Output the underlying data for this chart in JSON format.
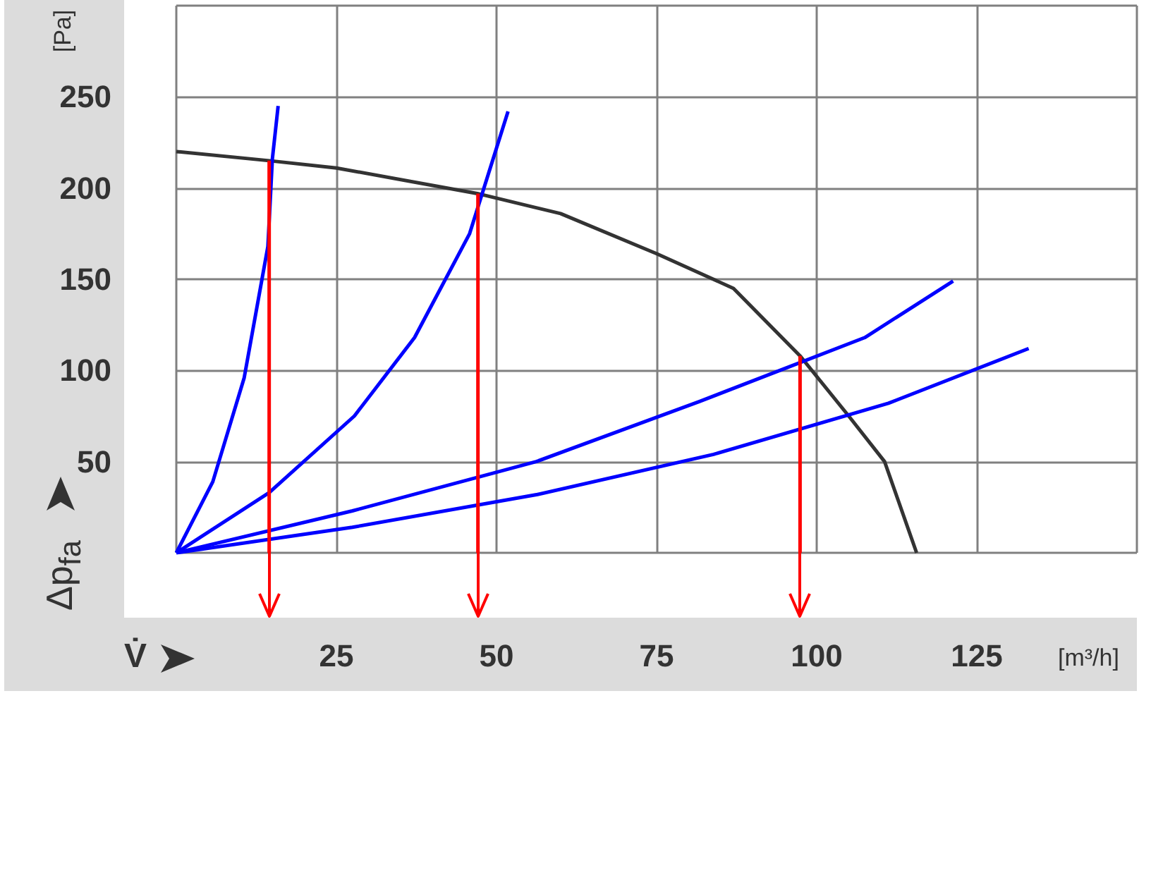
{
  "chart_data": {
    "type": "line",
    "xlabel": "V̇",
    "ylabel": "Δp$_{fa}$",
    "annotations": [
      "[Pa]",
      "[m³/h]"
    ],
    "xlim": [
      0,
      150
    ],
    "xticks": [
      {
        "value": 0,
        "label": null
      },
      25,
      50,
      75,
      100,
      125,
      {
        "value": 150,
        "label": null
      }
    ],
    "ylim": [
      0,
      300
    ],
    "yticks": [
      {
        "value": 0,
        "label": null
      },
      50,
      100,
      150,
      200,
      250,
      {
        "value": 300,
        "label": null
      }
    ],
    "grid": true,
    "marker": "none",
    "series": [
      {
        "color": "#333333",
        "x": [
          0,
          14.5,
          25,
          47,
          60,
          75,
          87,
          97.4,
          105,
          110.6,
          115.6
        ],
        "values": [
          220,
          215,
          211,
          197,
          186,
          164,
          145,
          108,
          75,
          50,
          0
        ]
      },
      {
        "color": "#0000ff",
        "x": [
          0,
          5.7,
          10.6,
          14.3,
          15,
          15.9
        ],
        "values": [
          0,
          39,
          96,
          168,
          216,
          245
        ]
      },
      {
        "color": "#0000ff",
        "x": [
          0,
          14.5,
          27.8,
          37.2,
          45.8,
          51.8
        ],
        "values": [
          0,
          33,
          75,
          118,
          175,
          242
        ]
      },
      {
        "color": "#0000ff",
        "x": [
          0,
          27.5,
          56.2,
          81.7,
          107.5,
          121.3
        ],
        "values": [
          0,
          23,
          50,
          83,
          118,
          149
        ]
      },
      {
        "color": "#0000ff",
        "x": [
          0,
          27.5,
          56.4,
          83.9,
          111.2,
          133.1
        ],
        "values": [
          0,
          14,
          32,
          54,
          82,
          112
        ]
      },
      {
        "color": "#ff0000",
        "x": [
          14.5,
          14.5
        ],
        "values": [
          215,
          0
        ]
      },
      {
        "color": "#ff0000",
        "x": [
          47.1,
          47.1
        ],
        "values": [
          197,
          0
        ]
      },
      {
        "color": "#ff0000",
        "x": [
          97.4,
          97.4
        ],
        "values": [
          108,
          0
        ]
      }
    ]
  }
}
